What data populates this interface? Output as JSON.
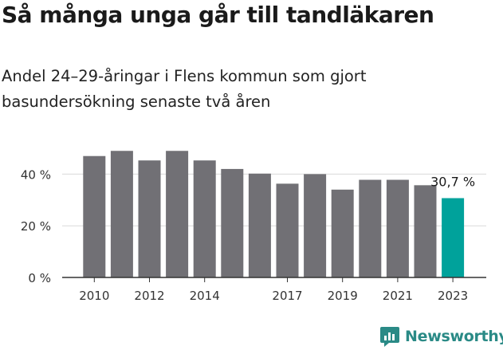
{
  "title": "Så många unga går till tandläkaren",
  "subtitle_line1": "Andel 24–29-åringar i Flens kommun som gjort",
  "subtitle_line2": "basundersökning senaste två åren",
  "brand_name": "Newsworthy",
  "brand_icon": "newsworthy-logo-icon",
  "colors": {
    "bar": "#717075",
    "highlight": "#00a29b",
    "grid": "#d9d9d9",
    "axis": "#333333",
    "brand": "#2a8a86"
  },
  "chart_data": {
    "type": "bar",
    "categories": [
      "2010",
      "2011",
      "2012",
      "2013",
      "2014",
      "2015",
      "2016",
      "2017",
      "2018",
      "2019",
      "2020",
      "2021",
      "2022",
      "2023"
    ],
    "values": [
      47.0,
      49.0,
      45.3,
      49.0,
      45.3,
      42.0,
      40.2,
      36.3,
      40.0,
      34.0,
      37.8,
      37.8,
      35.7,
      30.7
    ],
    "highlight_index": 13,
    "highlight_label": "30,7 %",
    "x_tick_labels": [
      "2010",
      "",
      "2012",
      "",
      "2014",
      "",
      "",
      "2017",
      "",
      "2019",
      "",
      "2021",
      "",
      "2023"
    ],
    "y_ticks": [
      0,
      20,
      40
    ],
    "y_tick_labels": [
      "0 %",
      "20 %",
      "40 %"
    ],
    "ylim": [
      0,
      50
    ],
    "grid": true,
    "xlabel": "",
    "ylabel": ""
  }
}
